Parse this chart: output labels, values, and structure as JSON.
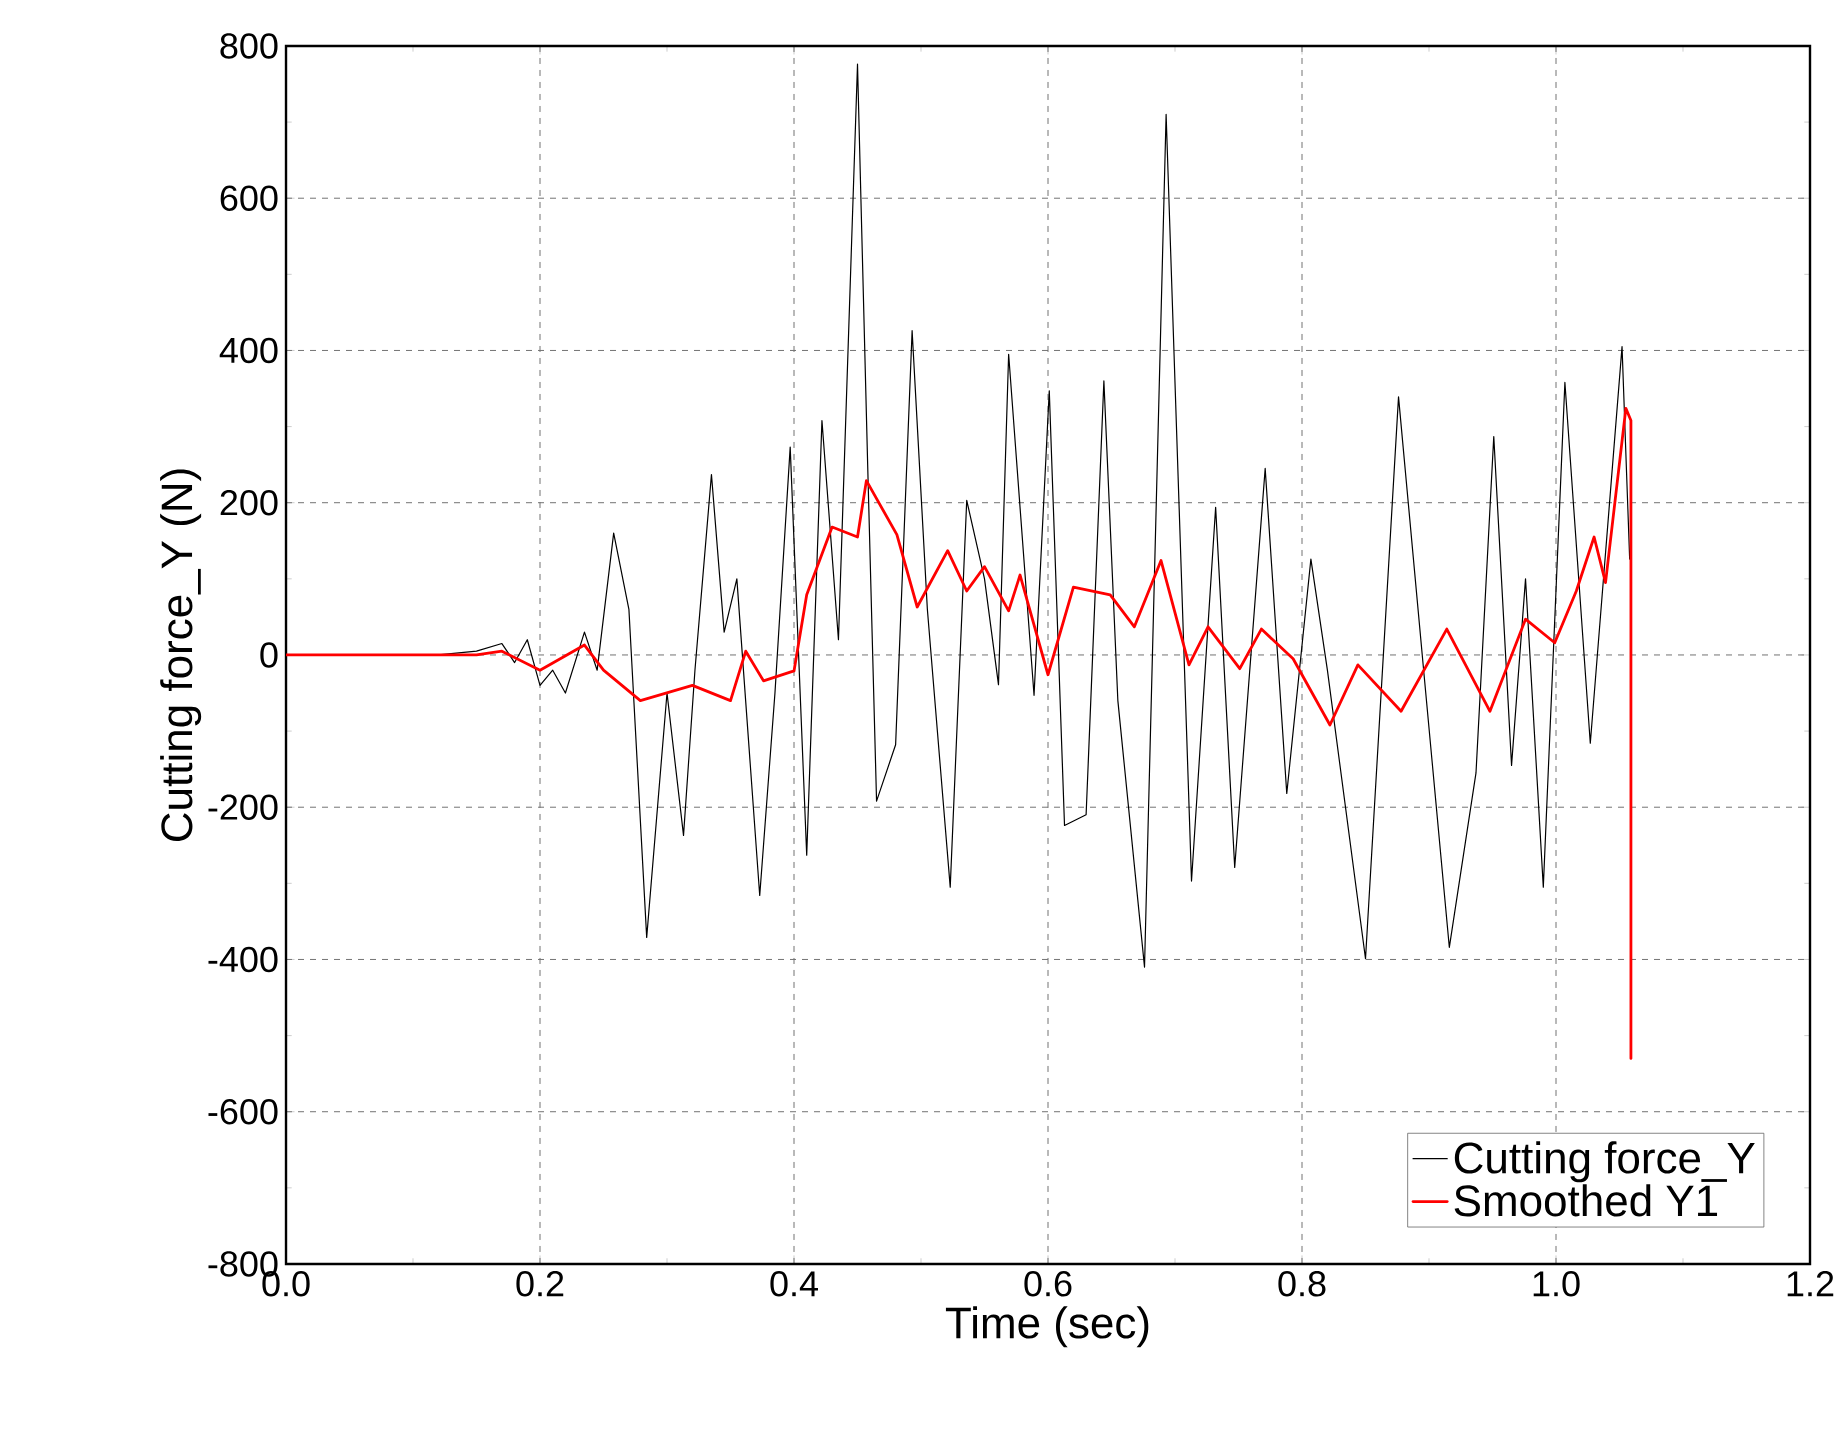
{
  "chart_data": {
    "type": "line",
    "xlabel": "Time (sec)",
    "ylabel": "Cutting force_Y (N)",
    "xlim": [
      0,
      1.2
    ],
    "ylim": [
      -800,
      800
    ],
    "xticks": [
      {
        "value": 0,
        "label": "0.0"
      },
      {
        "value": 0.2,
        "label": "0.2"
      },
      {
        "value": 0.4,
        "label": "0.4"
      },
      {
        "value": 0.6,
        "label": "0.6"
      },
      {
        "value": 0.8,
        "label": "0.8"
      },
      {
        "value": 1.0,
        "label": "1.0"
      },
      {
        "value": 1.2,
        "label": "1.2"
      }
    ],
    "yticks": [
      -800,
      -600,
      -400,
      -200,
      0,
      200,
      400,
      600,
      800
    ],
    "grid": true,
    "legend": "bottom right",
    "series": [
      {
        "name": "Cutting force_Y",
        "color": "#000000",
        "x": [
          0,
          0.12,
          0.15,
          0.17,
          0.18,
          0.19,
          0.2,
          0.21,
          0.22,
          0.235,
          0.245,
          0.258,
          0.27,
          0.284,
          0.3,
          0.313,
          0.322,
          0.335,
          0.345,
          0.355,
          0.373,
          0.385,
          0.397,
          0.41,
          0.422,
          0.435,
          0.45,
          0.458,
          0.465,
          0.48,
          0.493,
          0.505,
          0.523,
          0.536,
          0.55,
          0.561,
          0.569,
          0.589,
          0.601,
          0.613,
          0.63,
          0.644,
          0.655,
          0.676,
          0.693,
          0.713,
          0.732,
          0.747,
          0.771,
          0.788,
          0.807,
          0.82,
          0.85,
          0.876,
          0.896,
          0.916,
          0.937,
          0.951,
          0.965,
          0.976,
          0.99,
          1.007,
          1.027,
          1.052,
          1.058
        ],
        "values": [
          0,
          0,
          5,
          15,
          -10,
          20,
          -40,
          -20,
          -50,
          30,
          -20,
          160,
          60,
          -371,
          -50,
          -237,
          -20,
          237,
          30,
          100,
          -316,
          -50,
          273,
          -263,
          308,
          20,
          776,
          250,
          -192,
          -118,
          426,
          60,
          -305,
          203,
          100,
          -39,
          395,
          -53,
          347,
          -224,
          -210,
          360,
          -60,
          -410,
          710,
          -297,
          194,
          -279,
          245,
          -182,
          126,
          -20,
          -399,
          339,
          -24,
          -384,
          -155,
          287,
          -145,
          100,
          -305,
          358,
          -116,
          405,
          126
        ]
      },
      {
        "name": "Smoothed Y1",
        "color": "#ff0000",
        "x": [
          0,
          0.15,
          0.17,
          0.2,
          0.235,
          0.25,
          0.279,
          0.32,
          0.35,
          0.362,
          0.376,
          0.4,
          0.41,
          0.43,
          0.45,
          0.457,
          0.481,
          0.497,
          0.521,
          0.536,
          0.55,
          0.569,
          0.578,
          0.6,
          0.62,
          0.649,
          0.668,
          0.689,
          0.711,
          0.726,
          0.751,
          0.768,
          0.793,
          0.822,
          0.844,
          0.878,
          0.914,
          0.948,
          0.976,
          0.999,
          1.016,
          1.03,
          1.039,
          1.055,
          1.059,
          1.059
        ],
        "values": [
          0,
          0,
          5,
          -20,
          13,
          -20,
          -60,
          -40,
          -60,
          5,
          -34,
          -21,
          79,
          168,
          155,
          229,
          158,
          63,
          137,
          84,
          116,
          58,
          105,
          -26,
          89,
          79,
          37,
          124,
          -13,
          37,
          -18,
          34,
          -5,
          -92,
          -13,
          -74,
          34,
          -74,
          47,
          16,
          84,
          155,
          95,
          324,
          308,
          -530
        ]
      }
    ]
  }
}
